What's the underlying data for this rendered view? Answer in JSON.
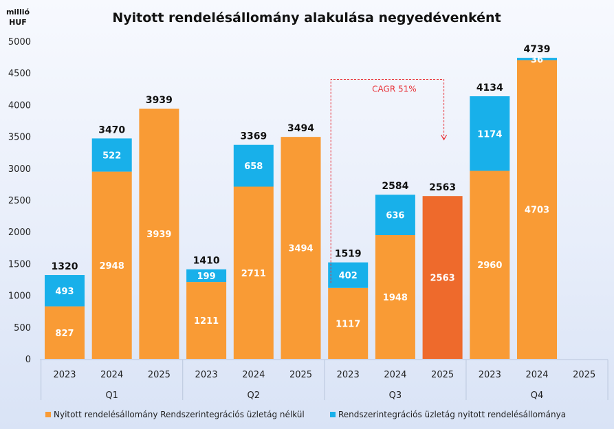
{
  "chart_data": {
    "type": "bar",
    "stacked": true,
    "title": "Nyitott rendelésállomány alakulása negyedévenként",
    "y_unit": [
      "millió",
      "HUF"
    ],
    "ylim": [
      0,
      5000
    ],
    "yticks": [
      0,
      500,
      1000,
      1500,
      2000,
      2500,
      3000,
      3500,
      4000,
      4500,
      5000
    ],
    "groups": [
      "Q1",
      "Q2",
      "Q3",
      "Q4"
    ],
    "years": [
      "2023",
      "2024",
      "2025"
    ],
    "colors": {
      "base": "#f99b35",
      "integration": "#18b0ea",
      "highlight": "#ee6a2c",
      "axis": "#b9c6dc",
      "annotation": "#e8333a"
    },
    "series": [
      {
        "name": "Nyitott rendelésállomány Rendszerintegrációs üzletág nélkül",
        "color": "#f99b35"
      },
      {
        "name": "Rendszerintegrációs üzletág nyitott rendelésállománya",
        "color": "#18b0ea"
      }
    ],
    "bars": [
      {
        "group": "Q1",
        "year": "2023",
        "base": 827,
        "integration": 493,
        "total": 1320
      },
      {
        "group": "Q1",
        "year": "2024",
        "base": 2948,
        "integration": 522,
        "total": 3470
      },
      {
        "group": "Q1",
        "year": "2025",
        "base": 3939,
        "integration": null,
        "total": 3939
      },
      {
        "group": "Q2",
        "year": "2023",
        "base": 1211,
        "integration": 199,
        "total": 1410
      },
      {
        "group": "Q2",
        "year": "2024",
        "base": 2711,
        "integration": 658,
        "total": 3369
      },
      {
        "group": "Q2",
        "year": "2025",
        "base": 3494,
        "integration": null,
        "total": 3494
      },
      {
        "group": "Q3",
        "year": "2023",
        "base": 1117,
        "integration": 402,
        "total": 1519
      },
      {
        "group": "Q3",
        "year": "2024",
        "base": 1948,
        "integration": 636,
        "total": 2584
      },
      {
        "group": "Q3",
        "year": "2025",
        "base": 2563,
        "integration": null,
        "total": 2563,
        "highlight": true
      },
      {
        "group": "Q4",
        "year": "2023",
        "base": 2960,
        "integration": 1174,
        "total": 4134
      },
      {
        "group": "Q4",
        "year": "2024",
        "base": 4703,
        "integration": 36,
        "total": 4739
      },
      {
        "group": "Q4",
        "year": "2025",
        "base": null,
        "integration": null,
        "total": null
      }
    ],
    "annotation": {
      "text": "CAGR 51%",
      "from": {
        "group": "Q3",
        "year": "2023"
      },
      "to": {
        "group": "Q3",
        "year": "2025"
      },
      "level": 4400,
      "arrow_end": 3450
    },
    "grid": false,
    "legend_position": "bottom"
  }
}
